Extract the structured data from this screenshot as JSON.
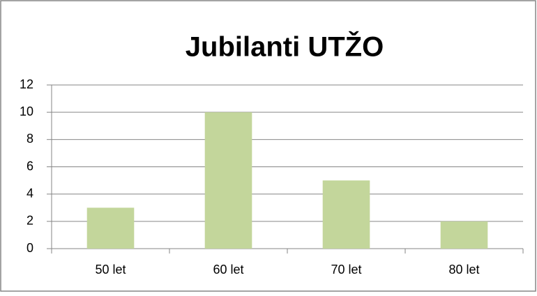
{
  "chart_data": {
    "type": "bar",
    "title": "Jubilanti UTŽO",
    "categories": [
      "50 let",
      "60 let",
      "70 let",
      "80 let"
    ],
    "values": [
      3,
      10,
      5,
      2
    ],
    "color": "#c3d69b",
    "ylim": [
      0,
      12
    ],
    "yticks": [
      0,
      2,
      4,
      6,
      8,
      10,
      12
    ],
    "grid": true
  }
}
